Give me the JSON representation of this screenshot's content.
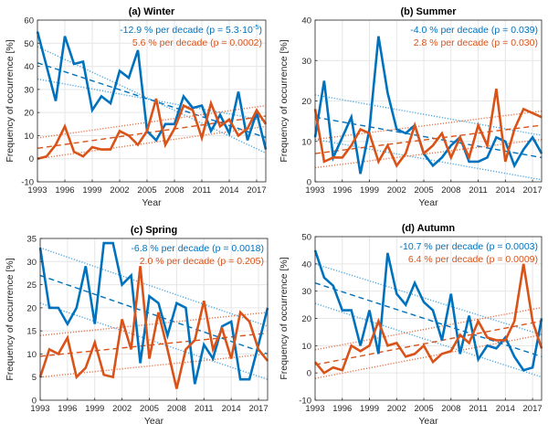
{
  "colors": {
    "blue": "#0072BD",
    "orange": "#D95319",
    "lightblue": "#4DA6E0",
    "lightorange": "#E8744A",
    "grid": "#E6E6E6",
    "axis": "#262626"
  },
  "chart_data": [
    {
      "type": "line",
      "title": "(a) Winter",
      "xlabel": "Year",
      "ylabel": "Frequency of occurrence  [%]",
      "xlim": [
        1993,
        2018
      ],
      "ylim": [
        -10,
        60
      ],
      "xticks": [
        1993,
        1996,
        1999,
        2002,
        2005,
        2008,
        2011,
        2014,
        2017
      ],
      "xtick_labels": [
        "1993",
        "1996",
        "1999",
        "2002",
        "2005",
        "2008",
        "2011",
        "2014",
        "2017"
      ],
      "yticks": [
        -10,
        0,
        10,
        20,
        30,
        40,
        50,
        60
      ],
      "ytick_labels": [
        "-10",
        "0",
        "10",
        "20",
        "30",
        "40",
        "50",
        "60"
      ],
      "grid": true,
      "x": [
        1993,
        1994,
        1995,
        1996,
        1997,
        1998,
        1999,
        2000,
        2001,
        2002,
        2003,
        2004,
        2005,
        2006,
        2007,
        2008,
        2009,
        2010,
        2011,
        2012,
        2013,
        2014,
        2015,
        2016,
        2017,
        2018
      ],
      "series": [
        {
          "name": "blue",
          "color": "#0072BD",
          "values": [
            55,
            40,
            25,
            53,
            41,
            42,
            21,
            27,
            24,
            38,
            35,
            47,
            12,
            8,
            15,
            15,
            27,
            22,
            23,
            12,
            19,
            11,
            29,
            8,
            20,
            4
          ],
          "trend": [
            41.5,
            9.2
          ],
          "ci_upper": [
            48.5,
            2.5
          ],
          "ci_lower": [
            34.5,
            16.5
          ]
        },
        {
          "name": "orange",
          "color": "#D95319",
          "values": [
            0,
            1,
            6,
            14,
            3,
            1,
            5,
            4,
            4,
            12,
            10,
            6,
            12,
            26,
            6,
            13,
            23,
            21,
            9,
            24,
            14,
            17,
            10,
            13,
            21,
            15
          ],
          "trend": [
            4.5,
            18.5
          ],
          "ci_upper": [
            9,
            23
          ],
          "ci_lower": [
            0,
            14
          ]
        }
      ],
      "annotations": [
        {
          "text": "-12.9 % per decade (p = 5.3·10",
          "sup": "-5",
          "tail": ")",
          "color": "#0072BD"
        },
        {
          "text": "5.6 % per decade (p = 0.0002)",
          "color": "#D95319"
        }
      ]
    },
    {
      "type": "line",
      "title": "(b) Summer",
      "xlabel": "Year",
      "ylabel": "Frequency of occurrence  [%]",
      "xlim": [
        1993,
        2018
      ],
      "ylim": [
        0,
        40
      ],
      "xticks": [
        1993,
        1996,
        1999,
        2002,
        2005,
        2008,
        2011,
        2014,
        2017
      ],
      "xtick_labels": [
        "1993",
        "1996",
        "1999",
        "2002",
        "2005",
        "2008",
        "2011",
        "2014",
        "2017"
      ],
      "yticks": [
        0,
        10,
        20,
        30,
        40
      ],
      "ytick_labels": [
        "0",
        "10",
        "20",
        "30",
        "40"
      ],
      "grid": true,
      "x": [
        1993,
        1994,
        1995,
        1996,
        1997,
        1998,
        1999,
        2000,
        2001,
        2002,
        2003,
        2004,
        2005,
        2006,
        2007,
        2008,
        2009,
        2010,
        2011,
        2012,
        2013,
        2014,
        2015,
        2016,
        2017,
        2018
      ],
      "series": [
        {
          "name": "blue",
          "color": "#0072BD",
          "values": [
            11,
            25,
            6,
            11,
            16,
            2,
            13,
            36,
            22,
            13,
            12,
            14,
            7,
            4,
            6,
            9,
            11,
            5,
            5,
            6,
            11,
            10,
            4,
            8,
            11,
            7
          ],
          "trend": [
            16,
            6
          ],
          "ci_upper": [
            21.5,
            11.5
          ],
          "ci_lower": [
            10.5,
            0.5
          ]
        },
        {
          "name": "orange",
          "color": "#D95319",
          "values": [
            18,
            5,
            6,
            6,
            9,
            13,
            12,
            5,
            9,
            4,
            7,
            14,
            7,
            9,
            12,
            6,
            11,
            6,
            14,
            9,
            23,
            5,
            13,
            18,
            17,
            16
          ],
          "trend": [
            7,
            14
          ],
          "ci_upper": [
            10.5,
            17.5
          ],
          "ci_lower": [
            3.5,
            10.5
          ]
        }
      ],
      "annotations": [
        {
          "text": "-4.0 % per decade (p = 0.039)",
          "color": "#0072BD"
        },
        {
          "text": "2.8 % per decade (p = 0.030)",
          "color": "#D95319"
        }
      ]
    },
    {
      "type": "line",
      "title": "(c) Spring",
      "xlabel": "Year",
      "ylabel": "Frequency of occurrence  [%]",
      "xlim": [
        1993,
        2018
      ],
      "ylim": [
        0,
        35
      ],
      "xticks": [
        1993,
        1996,
        1999,
        2002,
        2005,
        2008,
        2011,
        2014,
        2017
      ],
      "xtick_labels": [
        "1993",
        "1996",
        "1999",
        "2002",
        "2005",
        "2008",
        "2011",
        "2014",
        "2017"
      ],
      "yticks": [
        0,
        5,
        10,
        15,
        20,
        25,
        30,
        35
      ],
      "ytick_labels": [
        "0",
        "5",
        "10",
        "15",
        "20",
        "25",
        "30",
        "35"
      ],
      "grid": true,
      "x": [
        1993,
        1994,
        1995,
        1996,
        1997,
        1998,
        1999,
        2000,
        2001,
        2002,
        2003,
        2004,
        2005,
        2006,
        2007,
        2008,
        2009,
        2010,
        2011,
        2012,
        2013,
        2014,
        2015,
        2016,
        2017,
        2018
      ],
      "series": [
        {
          "name": "blue",
          "color": "#0072BD",
          "values": [
            33,
            20,
            20,
            16.5,
            20,
            29,
            16.5,
            34,
            34,
            25,
            27,
            8,
            22.5,
            21,
            14,
            21,
            20,
            3.5,
            12,
            9,
            16,
            17,
            4.5,
            4.5,
            12,
            20
          ],
          "trend": [
            27,
            10
          ],
          "ci_upper": [
            33,
            16
          ],
          "ci_lower": [
            21,
            4.5
          ]
        },
        {
          "name": "orange",
          "color": "#D95319",
          "values": [
            5,
            11,
            10,
            13.5,
            5,
            7,
            12.5,
            5.5,
            5,
            17.5,
            11,
            29,
            9,
            19,
            11,
            2.5,
            11,
            13,
            21.5,
            11,
            15.5,
            9,
            19,
            17,
            11,
            8.5
          ],
          "trend": [
            9.5,
            14.5
          ],
          "ci_upper": [
            14,
            19
          ],
          "ci_lower": [
            5,
            10
          ]
        }
      ],
      "annotations": [
        {
          "text": "-6.8 % per decade (p = 0.0018)",
          "color": "#0072BD"
        },
        {
          "text": "2.0 % per decade (p = 0.205)",
          "color": "#D95319"
        }
      ]
    },
    {
      "type": "line",
      "title": "(d) Autumn",
      "xlabel": "Year",
      "ylabel": "Frequency of occurrence  [%]",
      "xlim": [
        1993,
        2018
      ],
      "ylim": [
        -10,
        50
      ],
      "xticks": [
        1993,
        1996,
        1999,
        2002,
        2005,
        2008,
        2011,
        2014,
        2017
      ],
      "xtick_labels": [
        "1993",
        "1996",
        "1999",
        "2002",
        "2005",
        "2008",
        "2011",
        "2014",
        "2017"
      ],
      "yticks": [
        -10,
        0,
        10,
        20,
        30,
        40,
        50
      ],
      "ytick_labels": [
        "-10",
        "0",
        "10",
        "20",
        "30",
        "40",
        "50"
      ],
      "grid": true,
      "x": [
        1993,
        1994,
        1995,
        1996,
        1997,
        1998,
        1999,
        2000,
        2001,
        2002,
        2003,
        2004,
        2005,
        2006,
        2007,
        2008,
        2009,
        2010,
        2011,
        2012,
        2013,
        2014,
        2015,
        2016,
        2017,
        2018
      ],
      "series": [
        {
          "name": "blue",
          "color": "#0072BD",
          "values": [
            45,
            35,
            32,
            23,
            23,
            10,
            23,
            7,
            44,
            29,
            25,
            33,
            26,
            23,
            12,
            29,
            7,
            21,
            5,
            10,
            9,
            13,
            6,
            1,
            2,
            20
          ],
          "trend": [
            33,
            6
          ],
          "ci_upper": [
            40,
            14
          ],
          "ci_lower": [
            25.5,
            -1.5
          ]
        },
        {
          "name": "orange",
          "color": "#D95319",
          "values": [
            4,
            0,
            2,
            1,
            10,
            8,
            10,
            19,
            10,
            11,
            6,
            7,
            10,
            4,
            7,
            8,
            14,
            11,
            19,
            13,
            12,
            12,
            19,
            40,
            19,
            9
          ],
          "trend": [
            3,
            19
          ],
          "ci_upper": [
            8.5,
            24
          ],
          "ci_lower": [
            -2,
            14
          ]
        }
      ],
      "annotations": [
        {
          "text": "-10.7 % per decade (p = 0.0003)",
          "color": "#0072BD"
        },
        {
          "text": "6.4 % per decade (p = 0.0009)",
          "color": "#D95319"
        }
      ]
    }
  ]
}
